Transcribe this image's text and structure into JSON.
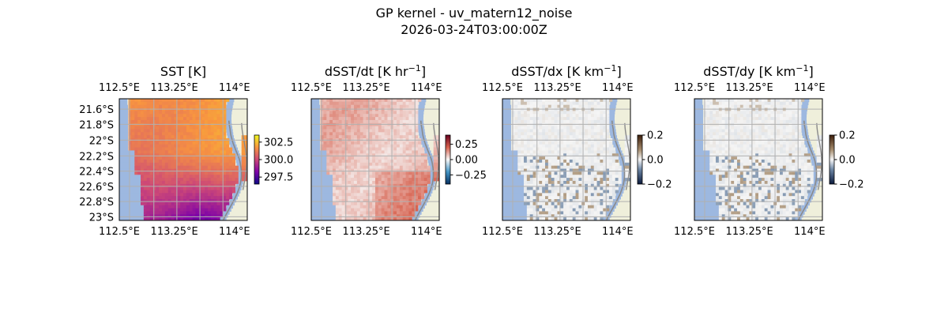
{
  "figure": {
    "title_line1": "GP kernel - uv_matern12_noise",
    "title_line2": "2026-03-24T03:00:00Z"
  },
  "colors": {
    "ocean_mask": "#9db8e0",
    "land": "#efefdb",
    "grid": "#b0b0b0",
    "coast": "#8a8a8a"
  },
  "chart_data": [
    {
      "type": "heatmap",
      "title": "SST [K]",
      "field": "sst",
      "colormap": "plasma",
      "xticks": [
        "112.5°E",
        "113.25°E",
        "114°E"
      ],
      "yticks": [
        "21.6°S",
        "21.8°S",
        "22°S",
        "22.2°S",
        "22.4°S",
        "22.6°S",
        "22.8°S",
        "23°S"
      ],
      "colorbar": {
        "ticks": [
          "302.5",
          "300.0",
          "297.5"
        ],
        "range": [
          296.5,
          303.5
        ]
      }
    },
    {
      "type": "heatmap",
      "title": "dSST/dt [K hr",
      "title_sup": "−1",
      "title_end": "]",
      "field": "dt",
      "colormap": "RdBu_r",
      "xticks": [
        "112.5°E",
        "113.25°E",
        "114°E"
      ],
      "yticks": [],
      "colorbar": {
        "ticks": [
          "0.25",
          "0.00",
          "−0.25"
        ],
        "range": [
          -0.4,
          0.4
        ]
      }
    },
    {
      "type": "heatmap",
      "title": "dSST/dx [K km",
      "title_sup": "−1",
      "title_end": "]",
      "field": "dx",
      "colormap": "diverging-grey",
      "xticks": [
        "112.5°E",
        "113.25°E",
        "114°E"
      ],
      "yticks": [],
      "colorbar": {
        "ticks": [
          "0.2",
          "0.0",
          "−0.2"
        ],
        "range": [
          -0.2,
          0.2
        ]
      }
    },
    {
      "type": "heatmap",
      "title": "dSST/dy [K km",
      "title_sup": "−1",
      "title_end": "]",
      "field": "dy",
      "colormap": "diverging-grey",
      "xticks": [
        "112.5°E",
        "113.25°E",
        "114°E"
      ],
      "yticks": [],
      "colorbar": {
        "ticks": [
          "0.2",
          "0.0",
          "−0.2"
        ],
        "range": [
          -0.2,
          0.2
        ]
      }
    }
  ]
}
